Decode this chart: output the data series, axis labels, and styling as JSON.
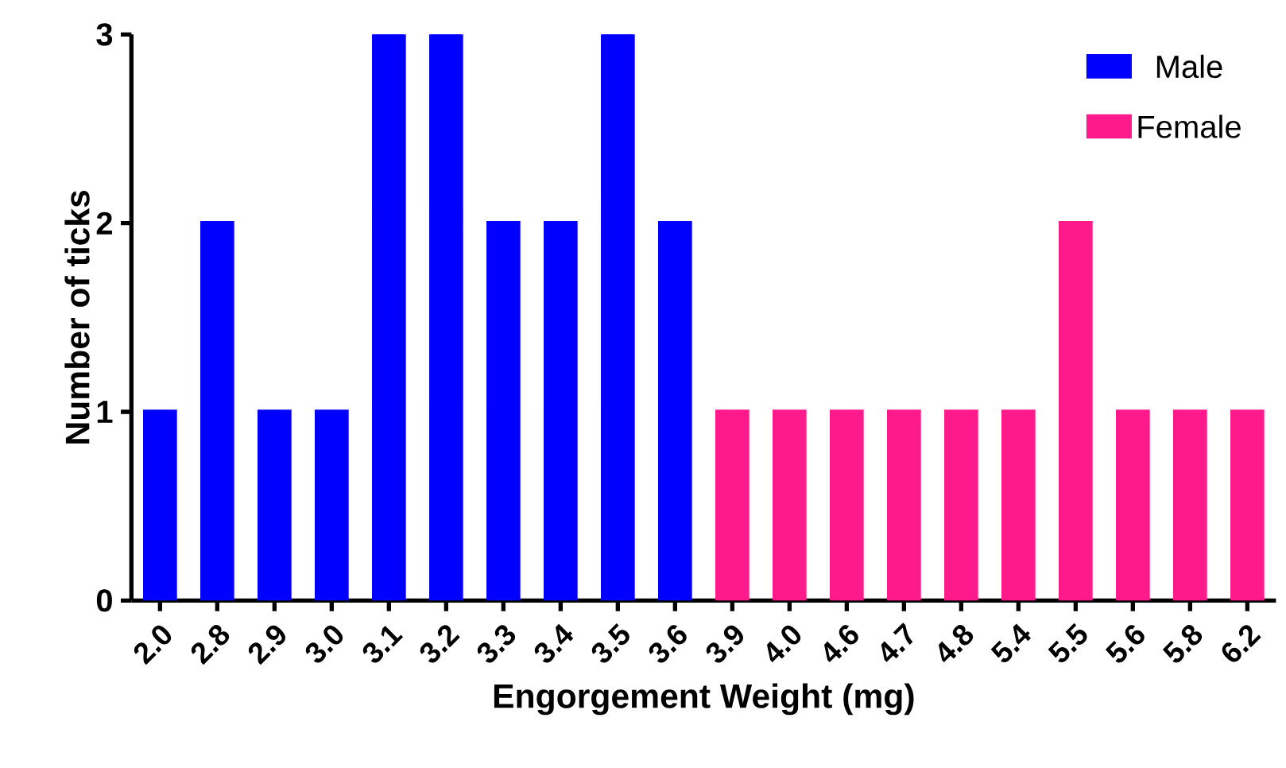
{
  "chart_data": {
    "type": "bar",
    "xlabel": "Engorgement Weight (mg)",
    "ylabel": "Number of ticks",
    "categories": [
      "2.0",
      "2.8",
      "2.9",
      "3.0",
      "3.1",
      "3.2",
      "3.3",
      "3.4",
      "3.5",
      "3.6",
      "3.9",
      "4.0",
      "4.6",
      "4.7",
      "4.8",
      "5.4",
      "5.5",
      "5.6",
      "5.8",
      "6.2"
    ],
    "series": [
      {
        "name": "Male",
        "color": "#0000ff",
        "values": [
          1,
          2,
          1,
          1,
          3,
          3,
          2,
          2,
          3,
          2,
          null,
          null,
          null,
          null,
          null,
          null,
          null,
          null,
          null,
          null
        ]
      },
      {
        "name": "Female",
        "color": "#ff1a8c",
        "values": [
          null,
          null,
          null,
          null,
          null,
          null,
          null,
          null,
          null,
          null,
          1,
          1,
          1,
          1,
          1,
          1,
          2,
          1,
          1,
          1
        ]
      }
    ],
    "ylim": [
      0,
      3
    ],
    "yticks": [
      0,
      1,
      2,
      3
    ],
    "grid": false,
    "legend": "top right"
  }
}
